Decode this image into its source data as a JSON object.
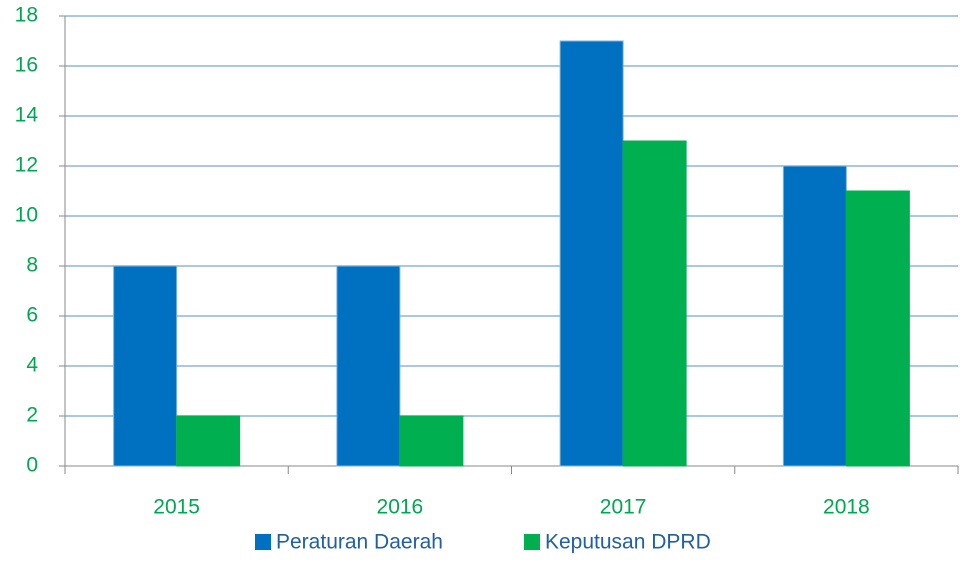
{
  "chart_data": {
    "type": "bar",
    "categories": [
      "2015",
      "2016",
      "2017",
      "2018"
    ],
    "series": [
      {
        "name": "Peraturan Daerah",
        "color": "#0070c0",
        "values": [
          8,
          8,
          17,
          12
        ]
      },
      {
        "name": "Keputusan DPRD",
        "color": "#00b050",
        "values": [
          2,
          2,
          13,
          11
        ]
      }
    ],
    "ylim": [
      0,
      18
    ],
    "yticks": [
      0,
      2,
      4,
      6,
      8,
      10,
      12,
      14,
      16,
      18
    ],
    "grid": true,
    "legend": "bottom"
  }
}
